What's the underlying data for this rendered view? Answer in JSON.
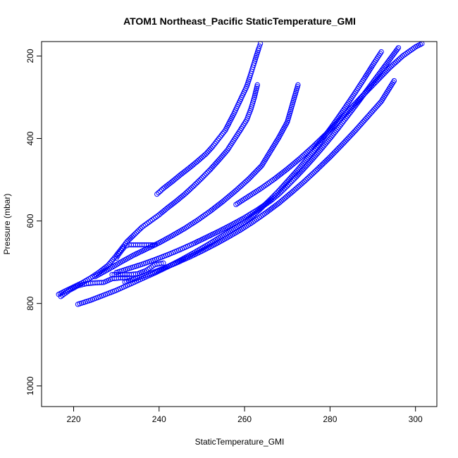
{
  "chart_data": {
    "type": "scatter",
    "title": "ATOM1 Northeast_Pacific StaticTemperature_GMI",
    "xlabel": "StaticTemperature_GMI",
    "ylabel": "Pressure (mbar)",
    "xlim": [
      212.5,
      305
    ],
    "ylim": [
      1050,
      165
    ],
    "y_reversed": true,
    "grid": false,
    "marker": "open-circle",
    "point_color": "#0000ff",
    "xticks": [
      220,
      240,
      260,
      280,
      300
    ],
    "yticks": [
      200,
      400,
      600,
      800,
      1000
    ],
    "series": [
      {
        "x": [
          239.5,
          241,
          243,
          245,
          247,
          249,
          251,
          252.5,
          254,
          255.5,
          256.5,
          257.5,
          258.5,
          259.5,
          260.5,
          261.2,
          261.8,
          262.4,
          262.9,
          263.3,
          263.7
        ],
        "y": [
          535,
          521,
          505,
          488,
          472,
          455,
          437,
          420,
          400,
          380,
          360,
          340,
          318,
          296,
          274,
          252,
          232,
          212,
          195,
          182,
          170
        ]
      },
      {
        "x": [
          216.5,
          218,
          220,
          222,
          224,
          226,
          228,
          229.5,
          231,
          232.5,
          234,
          236,
          238,
          240,
          242,
          244,
          246,
          248,
          250,
          252,
          254,
          256,
          257.5,
          259,
          260.5,
          261.5,
          262.3,
          263
        ],
        "y": [
          778,
          770,
          760,
          750,
          738,
          724,
          708,
          690,
          670,
          650,
          635,
          615,
          600,
          585,
          568,
          552,
          535,
          516,
          496,
          475,
          452,
          428,
          404,
          380,
          355,
          328,
          300,
          270
        ]
      },
      {
        "x": [
          225,
          228,
          231,
          234,
          237,
          240,
          243,
          246,
          249,
          252,
          255,
          258,
          261,
          264,
          266,
          268,
          270,
          272.5
        ],
        "y": [
          735,
          718,
          700,
          683,
          668,
          653,
          636,
          618,
          598,
          576,
          552,
          526,
          498,
          466,
          432,
          398,
          360,
          270
        ]
      },
      {
        "x": [
          221,
          224,
          227,
          230,
          233,
          236,
          239,
          242,
          245,
          248,
          251,
          254,
          257,
          260,
          262,
          264,
          266,
          268,
          270,
          272,
          274,
          276,
          278,
          280,
          282,
          284,
          286,
          288,
          290,
          292
        ],
        "y": [
          802,
          792,
          780,
          768,
          754,
          740,
          726,
          711,
          695,
          678,
          660,
          641,
          622,
          603,
          587,
          568,
          548,
          527,
          504,
          481,
          457,
          432,
          405,
          377,
          348,
          318,
          287,
          255,
          222,
          190
        ]
      },
      {
        "x": [
          230,
          233,
          236,
          239,
          242,
          245,
          248,
          251,
          254,
          257,
          260,
          263,
          266,
          268,
          270,
          272,
          274,
          276,
          278,
          280,
          282,
          284,
          286,
          288,
          290,
          292,
          294,
          296
        ],
        "y": [
          725,
          715,
          705,
          694,
          682,
          669,
          655,
          640,
          625,
          609,
          592,
          573,
          552,
          535,
          515,
          494,
          472,
          449,
          425,
          400,
          374,
          347,
          320,
          292,
          264,
          236,
          208,
          180
        ]
      },
      {
        "x": [
          232,
          235,
          238,
          241,
          244,
          247,
          250,
          253,
          256,
          259,
          262,
          265,
          268,
          271,
          274,
          277,
          280,
          283,
          286,
          289,
          292,
          295
        ],
        "y": [
          748,
          738,
          727,
          715,
          702,
          688,
          673,
          657,
          640,
          622,
          602,
          580,
          557,
          531,
          504,
          475,
          445,
          413,
          380,
          345,
          310,
          260
        ]
      },
      {
        "x": [
          258,
          261,
          264,
          267,
          270,
          273,
          276,
          279,
          282,
          285,
          288,
          291,
          294,
          297,
          300,
          301.5
        ],
        "y": [
          560,
          540,
          520,
          498,
          474,
          448,
          420,
          390,
          358,
          325,
          292,
          260,
          228,
          200,
          178,
          170
        ]
      },
      {
        "x": [
          217,
          219,
          221,
          223,
          225,
          227,
          229,
          231,
          233
        ],
        "y": [
          783,
          768,
          757,
          752,
          750,
          749,
          740,
          738,
          738
        ]
      },
      {
        "x": [
          230,
          230.6,
          231.2,
          231.8,
          232.4,
          233,
          234,
          235,
          236,
          237,
          238,
          239
        ],
        "y": [
          690,
          680,
          672,
          664,
          660,
          658,
          658,
          658,
          658,
          658,
          658,
          658
        ]
      },
      {
        "x": [
          229,
          231,
          233,
          235,
          237,
          239,
          241
        ],
        "y": [
          730,
          730,
          730,
          728,
          720,
          706,
          702
        ]
      }
    ]
  }
}
